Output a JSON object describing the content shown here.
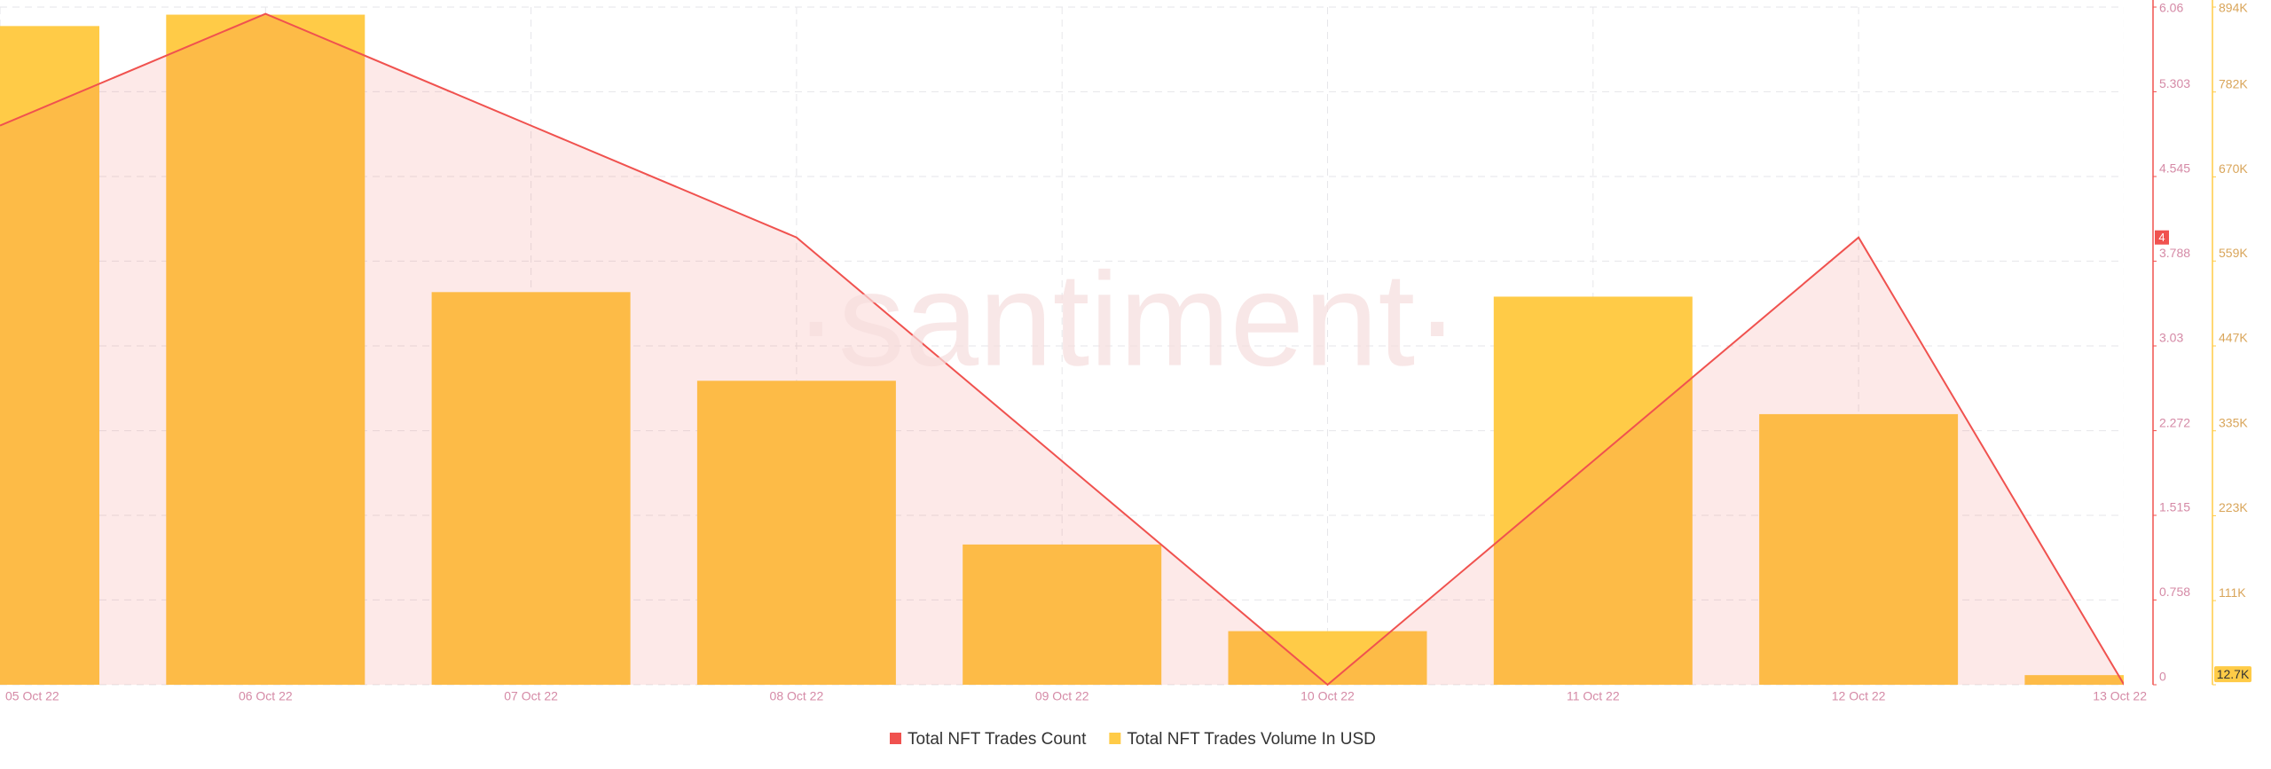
{
  "chart_data": {
    "type": "bar-line",
    "watermark": "·santiment·",
    "categories": [
      "05 Oct 22",
      "06 Oct 22",
      "07 Oct 22",
      "08 Oct 22",
      "09 Oct 22",
      "10 Oct 22",
      "11 Oct 22",
      "12 Oct 22",
      "13 Oct 22"
    ],
    "series": [
      {
        "name": "Total NFT Trades Count",
        "color": "#f0524f",
        "type": "area-line",
        "values": [
          5,
          6,
          5,
          4,
          2,
          0,
          2,
          4,
          0
        ]
      },
      {
        "name": "Total NFT Trades Volume In USD",
        "color": "#ffcb47",
        "type": "bar",
        "axis": "y2",
        "values": [
          869000,
          884000,
          518000,
          401000,
          185000,
          70700,
          512000,
          357000,
          12700
        ],
        "value_labels": [
          null,
          null,
          null,
          null,
          null,
          null,
          null,
          null,
          "12.7K"
        ]
      }
    ],
    "ylim": [
      0,
      6.06
    ],
    "yticks": [
      0,
      0.758,
      1.515,
      2.272,
      3.03,
      3.788,
      4.545,
      5.303,
      6.06
    ],
    "y_marker": 4,
    "y2lim": [
      0,
      894000
    ],
    "y2ticks": [
      0,
      {
        "value": 111000,
        "label": "111K"
      },
      {
        "value": 223000,
        "label": "223K"
      },
      {
        "value": 335000,
        "label": "335K"
      },
      {
        "value": 447000,
        "label": "447K"
      },
      {
        "value": 559000,
        "label": "559K"
      },
      {
        "value": 670000,
        "label": "670K"
      },
      {
        "value": 782000,
        "label": "782K"
      },
      {
        "value": 894000,
        "label": "894K"
      }
    ],
    "grid": true
  }
}
